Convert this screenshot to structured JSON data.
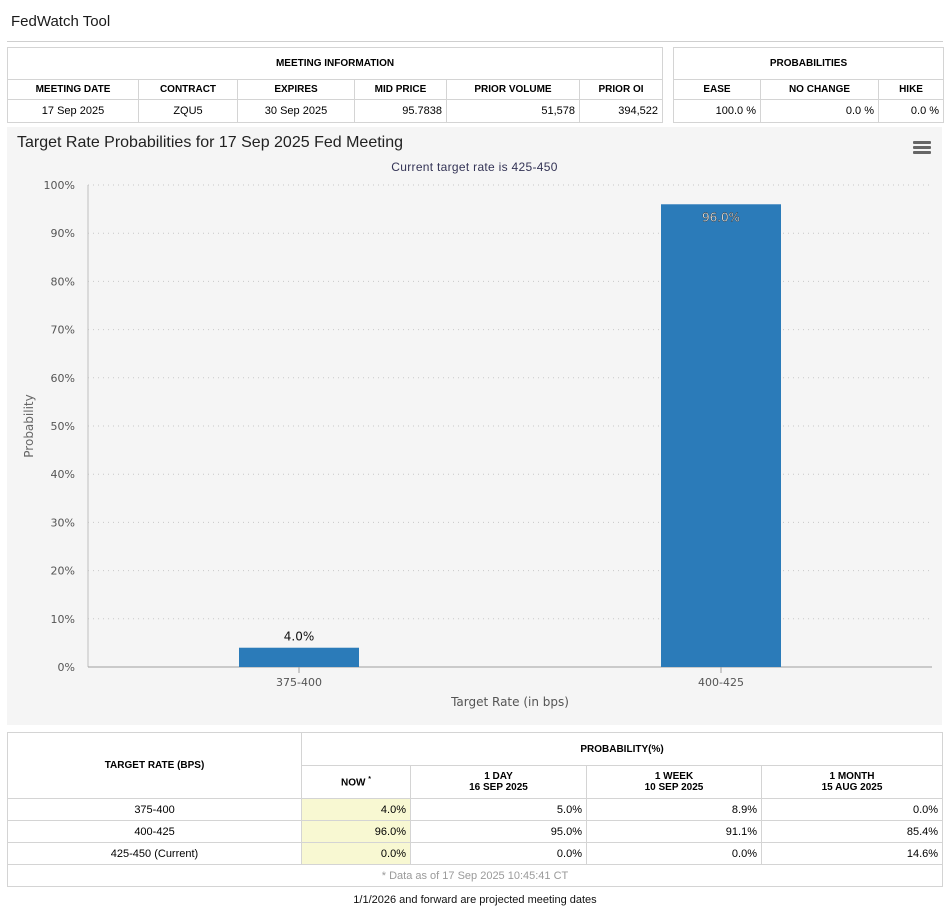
{
  "app_title": "FedWatch Tool",
  "meeting_info": {
    "group_label": "MEETING INFORMATION",
    "headers": [
      "MEETING DATE",
      "CONTRACT",
      "EXPIRES",
      "MID PRICE",
      "PRIOR VOLUME",
      "PRIOR OI"
    ],
    "values": [
      "17 Sep 2025",
      "ZQU5",
      "30 Sep 2025",
      "95.7838",
      "51,578",
      "394,522"
    ]
  },
  "probabilities": {
    "group_label": "PROBABILITIES",
    "headers": [
      "EASE",
      "NO CHANGE",
      "HIKE"
    ],
    "values": [
      "100.0 %",
      "0.0 %",
      "0.0 %"
    ]
  },
  "chart_data": {
    "type": "bar",
    "title": "Target Rate Probabilities for 17 Sep 2025 Fed Meeting",
    "subtitle": "Current target rate is 425-450",
    "xlabel": "Target Rate (in bps)",
    "ylabel": "Probability",
    "categories": [
      "375-400",
      "400-425"
    ],
    "values": [
      4.0,
      96.0
    ],
    "data_labels": [
      "4.0%",
      "96.0%"
    ],
    "ylim": [
      0,
      100
    ],
    "yticks": [
      "0%",
      "10%",
      "20%",
      "30%",
      "40%",
      "50%",
      "60%",
      "70%",
      "80%",
      "90%",
      "100%"
    ],
    "grid": true,
    "bar_color": "#2b7bb9"
  },
  "prob_table": {
    "rate_header": "TARGET RATE (BPS)",
    "group_header": "PROBABILITY(%)",
    "columns": [
      {
        "line1": "NOW",
        "marker": "*",
        "line2": ""
      },
      {
        "line1": "1 DAY",
        "line2": "16 SEP 2025"
      },
      {
        "line1": "1 WEEK",
        "line2": "10 SEP 2025"
      },
      {
        "line1": "1 MONTH",
        "line2": "15 AUG 2025"
      }
    ],
    "rows": [
      {
        "rate": "375-400",
        "now": "4.0%",
        "day": "5.0%",
        "week": "8.9%",
        "month": "0.0%"
      },
      {
        "rate": "400-425",
        "now": "96.0%",
        "day": "95.0%",
        "week": "91.1%",
        "month": "85.4%"
      },
      {
        "rate": "425-450 (Current)",
        "now": "0.0%",
        "day": "0.0%",
        "week": "0.0%",
        "month": "14.6%"
      }
    ],
    "data_as_of": "* Data as of 17 Sep 2025 10:45:41 CT"
  },
  "footnote": "1/1/2026 and forward are projected meeting dates",
  "colors": {
    "now_highlight": "#f8f8d2",
    "panel_bg": "#f5f5f5"
  }
}
